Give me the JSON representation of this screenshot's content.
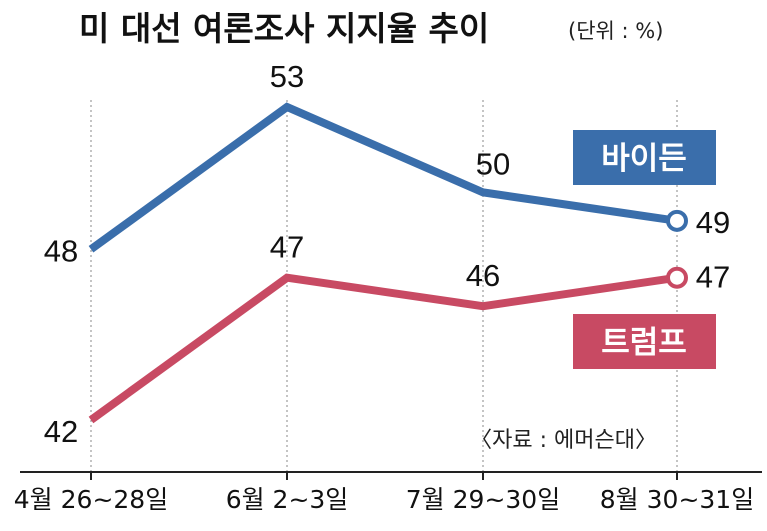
{
  "title": "미 대선 여론조사 지지율 추이",
  "unit": "(단위 : %)",
  "source": "〈자료 : 에머슨대〉",
  "colors": {
    "biden": "#3a6eab",
    "trump": "#c84a63",
    "axis": "#222222",
    "grid": "#888888"
  },
  "chart_data": {
    "type": "line",
    "title": "미 대선 여론조사 지지율 추이",
    "unit": "%",
    "categories": [
      "4월 26~28일",
      "6월 2~3일",
      "7월 29~30일",
      "8월 30~31일"
    ],
    "series": [
      {
        "name": "바이든",
        "values": [
          48,
          53,
          50,
          49
        ],
        "color": "#3a6eab"
      },
      {
        "name": "트럼프",
        "values": [
          42,
          47,
          46,
          47
        ],
        "color": "#c84a63"
      }
    ],
    "labels": {
      "바이든": [
        "48",
        "53",
        "50",
        "49"
      ],
      "트럼프": [
        "42",
        "47",
        "46",
        "47"
      ]
    },
    "ylim": [
      40,
      55
    ],
    "legend": "right",
    "grid": "vertical-dotted"
  }
}
